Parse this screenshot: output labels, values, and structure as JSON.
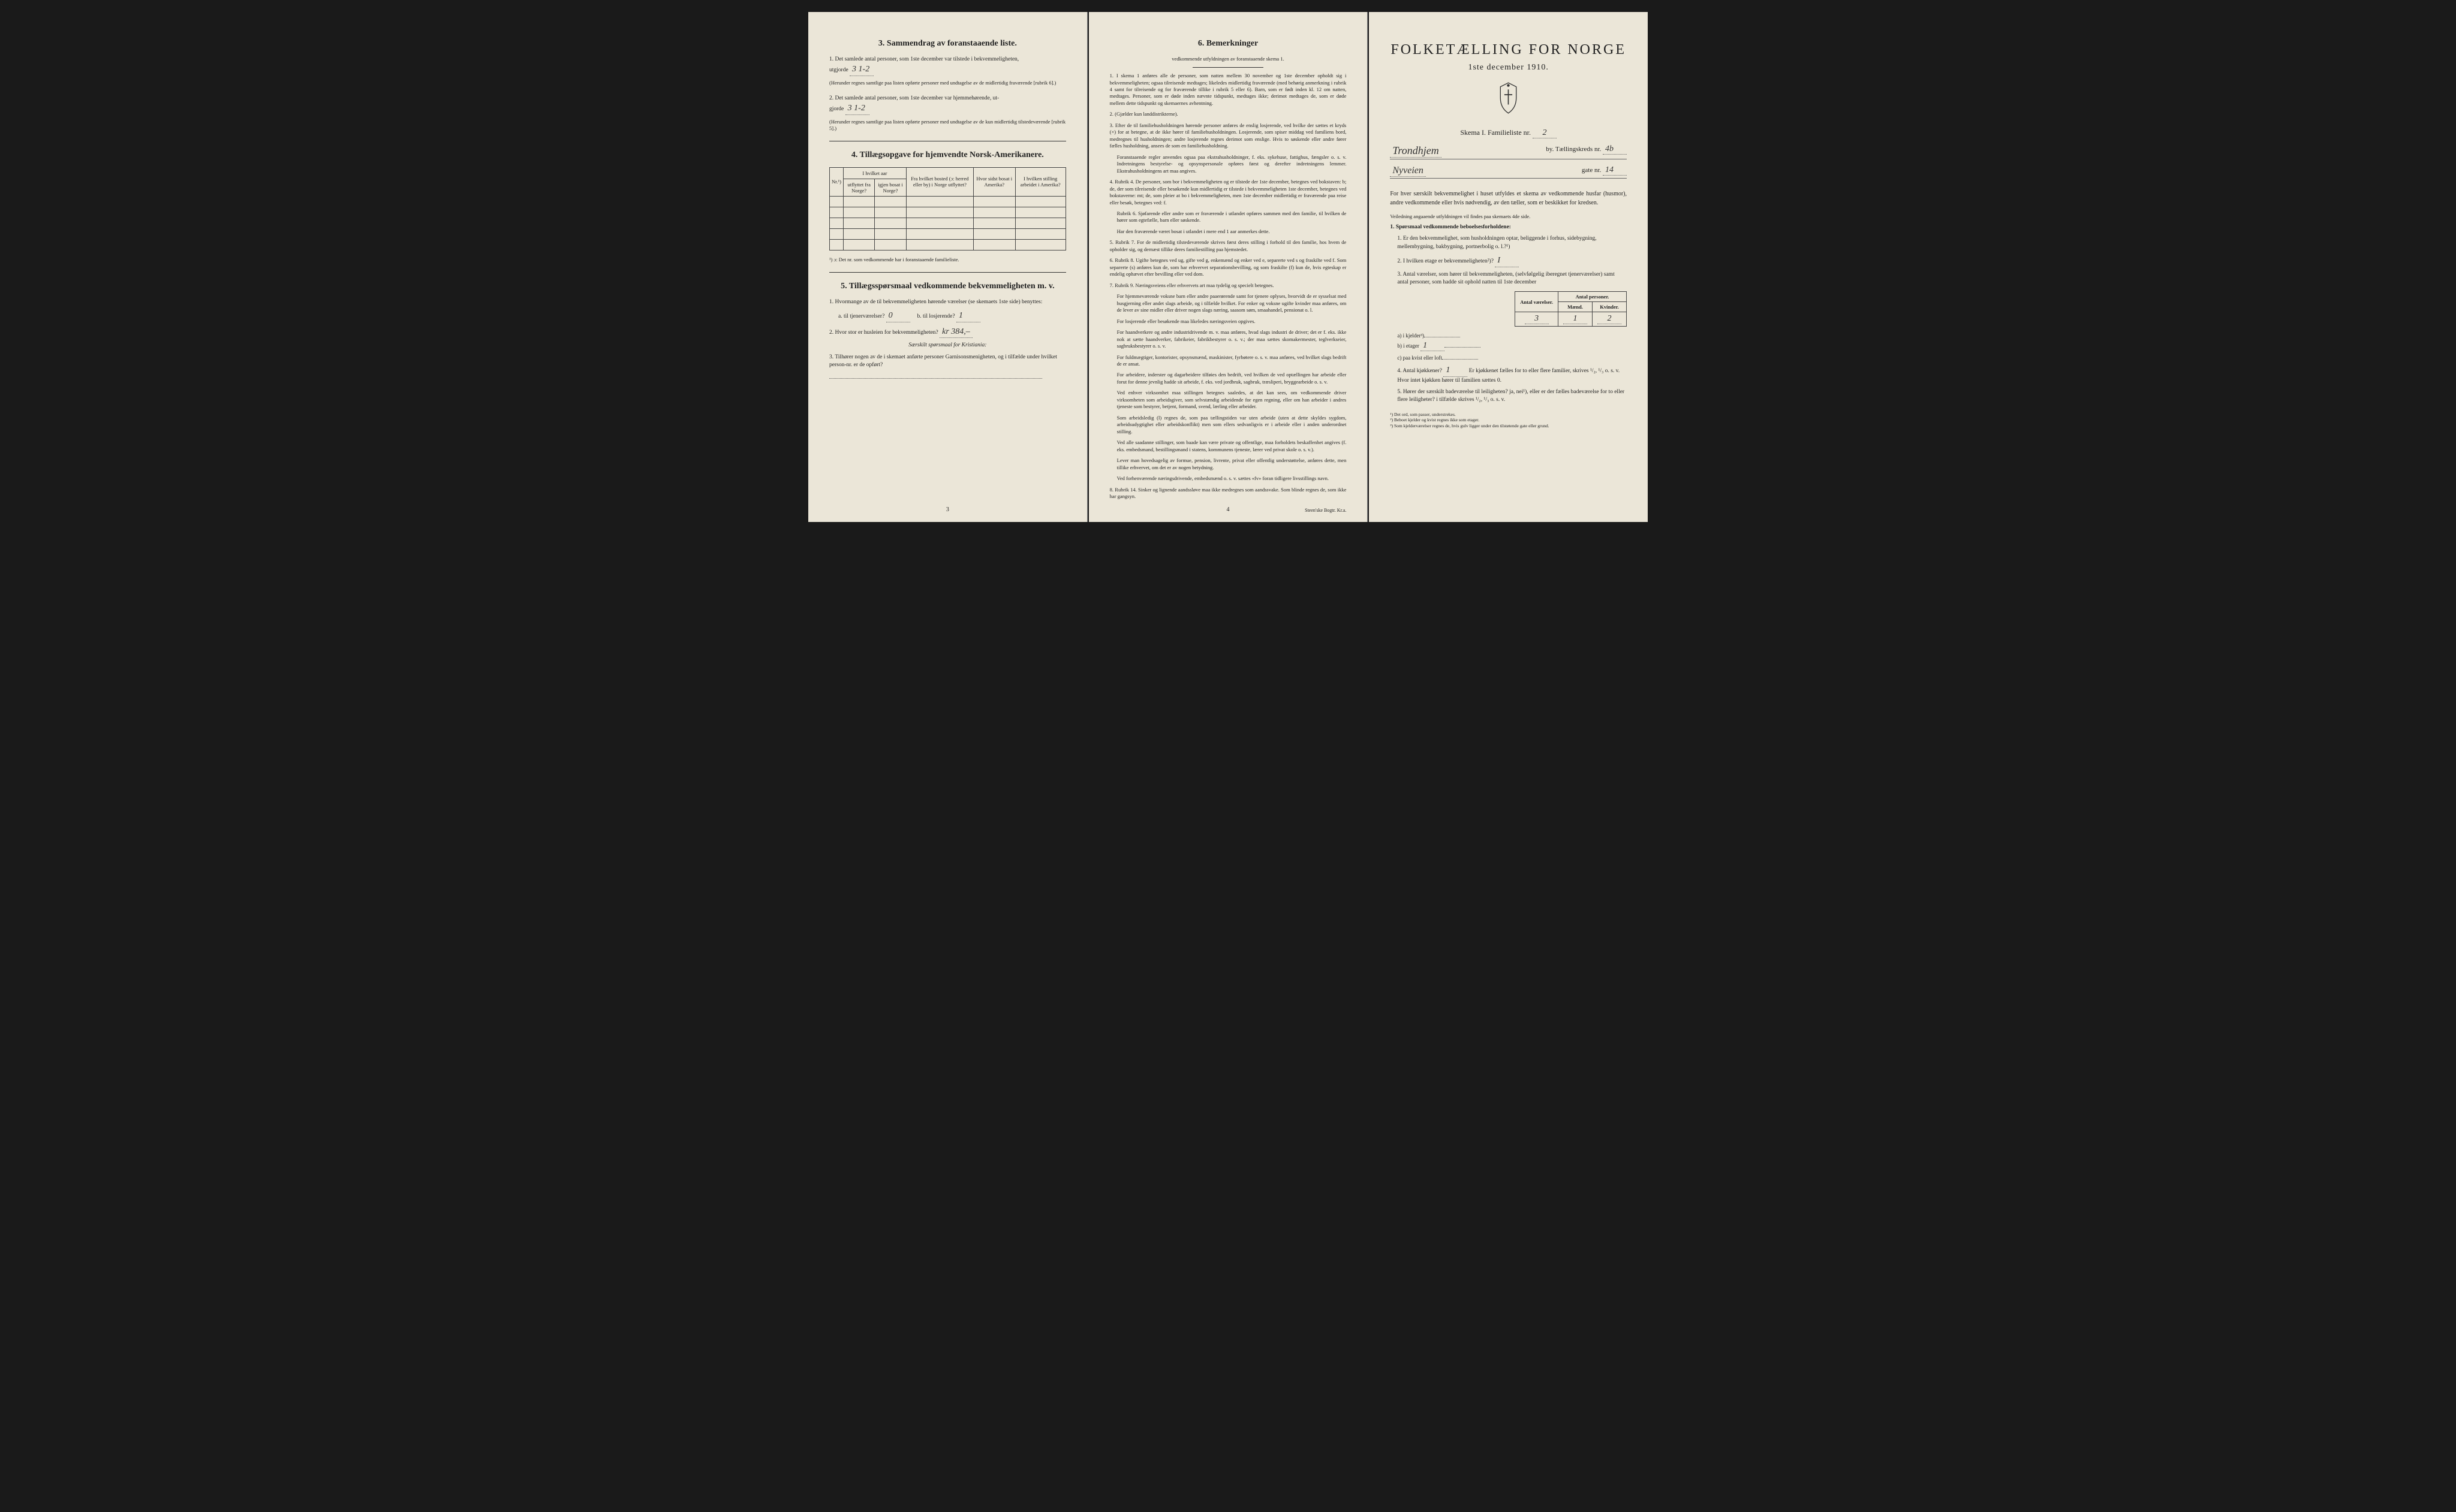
{
  "page_left": {
    "section3": {
      "title": "3.  Sammendrag av foranstaaende liste.",
      "item1_text": "1. Det samlede antal personer, som 1ste december var tilstede i bekvemmeligheten,",
      "item1_prefix": "utgjorde",
      "item1_value": "3    1-2",
      "item1_note": "(Herunder regnes samtlige paa listen opførte personer med undtagelse av de midlertidig fraværende [rubrik 6].)",
      "item2_text": "2. Det samlede antal personer, som 1ste december var hjemmehørende, ut-",
      "item2_prefix": "gjorde",
      "item2_value": "3    1-2",
      "item2_note": "(Herunder regnes samtlige paa listen opførte personer med undtagelse av de kun midlertidig tilstedeværende [rubrik 5].)"
    },
    "section4": {
      "title": "4.  Tillægsopgave for hjemvendte Norsk-Amerikanere.",
      "table": {
        "h1": "Nr.¹)",
        "h2_top": "I hvilket aar",
        "h2a": "utflyttet fra Norge?",
        "h2b": "igjen bosat i Norge?",
        "h3": "Fra hvilket bosted (ɔ: herred eller by) i Norge utflyttet?",
        "h4": "Hvor sidst bosat i Amerika?",
        "h5": "I hvilken stilling arbeidet i Amerika?"
      },
      "footnote": "¹) ɔ: Det nr. som vedkommende har i foranstaaende familieliste."
    },
    "section5": {
      "title": "5.  Tillægsspørsmaal vedkommende bekvemmeligheten m. v.",
      "item1": "1. Hvormange av de til bekvemmeligheten hørende værelser (se skemaets 1ste side) benyttes:",
      "item1a_label": "a. til tjenerværelser?",
      "item1a_value": "0",
      "item1b_label": "b. til losjerende?",
      "item1b_value": "1",
      "item2_label": "2. Hvor stor er husleien for bekvemmeligheten?",
      "item2_value": "kr 384,–",
      "item2_note": "Særskilt spørsmaal for Kristiania:",
      "item3": "3. Tilhører nogen av de i skemaet anførte personer Garnisonsmenigheten, og i tilfælde under hvilket person-nr. er de opført?"
    },
    "page_num": "3"
  },
  "page_center": {
    "title": "6.  Bemerkninger",
    "subtitle": "vedkommende utfyldningen av foranstaaende skema 1.",
    "items": [
      "1. I skema 1 anføres alle de personer, som natten mellem 30 november og 1ste december opholdt sig i bekvemmeligheten; ogsaa tilreisende medtages; likeledes midlertidig fraværende (med behørig anmerkning i rubrik 4 samt for tilreisende og for fraværende tillike i rubrik 5 eller 6). Barn, som er født inden kl. 12 om natten, medtages. Personer, som er døde inden nævnte tidspunkt, medtages ikke; derimot medtages de, som er døde mellem dette tidspunkt og skemaernes avhentning.",
      "2. (Gjælder kun landdistrikterne).",
      "3. Efter de til familiehusholdningen hørende personer anføres de enslig losjerende, ved hvilke der sættes et kryds (×) for at betegne, at de ikke hører til familiehusholdningen. Losjerende, som spiser middag ved familiens bord, medregnes til husholdningen; andre losjerende regnes derimot som enslige. Hvis to søskende eller andre fører fælles husholdning, ansees de som en familiehusholdning.",
      "Foranstaaende regler anvendes ogsaa paa ekstrahusholdninger, f. eks. sykehuse, fattighus, fængsler o. s. v. Indretningens bestyrelse- og opsynspersonale opføres først og derefter indretningens lemmer. Ekstrahusholdningens art maa angives.",
      "4. Rubrik 4. De personer, som bor i bekvemmeligheten og er tilstede der 1ste december, betegnes ved bokstaven: b; de, der som tilreisende eller besøkende kun midlertidig er tilstede i bekvemmeligheten 1ste december, betegnes ved bokstaverne: mt; de, som pleier at bo i bekvemmeligheten, men 1ste december midlertidig er fraværende paa reise eller besøk, betegnes ved: f.",
      "Rubrik 6. Sjøfarende eller andre som er fraværende i utlandet opføres sammen med den familie, til hvilken de hører som egtefælle, barn eller søskende.",
      "Har den fraværende været bosat i utlandet i mere end 1 aar anmerkes dette.",
      "5. Rubrik 7. For de midlertidig tilstedeværende skrives først deres stilling i forhold til den familie, hos hvem de opholder sig, og dernæst tillike deres familiestilling paa hjemstedet.",
      "6. Rubrik 8. Ugifte betegnes ved ug, gifte ved g, enkemænd og enker ved e, separerte ved s og fraskilte ved f. Som separerte (s) anføres kun de, som har erhvervet separationsbevilling, og som fraskilte (f) kun de, hvis egteskap er endelig ophævet efter bevilling eller ved dom.",
      "7. Rubrik 9. Næringsveiens eller erhvervets art maa tydelig og specielt betegnes.",
      "For hjemmeværende voksne barn eller andre paaerørende samt for tjenere oplyses, hvorvidt de er sysselsat med husgjerning eller andet slags arbeide, og i tilfælde hvilket. For enker og voksne ugifte kvinder maa anføres, om de lever av sine midler eller driver nogen slags næring, saasom søm, smaahandel, pensionat o. l.",
      "For losjerende eller besøkende maa likeledes næringsveien opgives.",
      "For haandverkere og andre industridrivende m. v. maa anføres, hvad slags industri de driver; det er f. eks. ikke nok at sætte haandverker, fabrikeier, fabrikbestyrer o. s. v.; der maa sættes skomakermester, teglverkseier, sagbruksbestyrer o. s. v.",
      "For fuldmægtiger, kontorister, opsynsmænd, maskinister, fyrbøtere o. s. v. maa anføres, ved hvilket slags bedrift de er ansat.",
      "For arbeidere, inderster og dagarbeidere tilføies den bedrift, ved hvilken de ved optællingen har arbeide eller forut for denne jevnlig hadde sit arbeide, f. eks. ved jordbruk, sagbruk, træsliperi, bryggearbeide o. s. v.",
      "Ved enhver virksomhet maa stillingen betegnes saaledes, at det kan sees, om vedkommende driver virksomheten som arbeidsgiver, som selvstændig arbeidende for egen regning, eller om han arbeider i andres tjeneste som bestyrer, betjent, formand, svend, lærling eller arbeider.",
      "Som arbeidsledig (l) regnes de, som paa tællingstiden var uten arbeide (uten at dette skyldes sygdom, arbeidsudygtighet eller arbeidskonflikt) men som ellers sedvanligvis er i arbeide eller i anden underordnet stilling.",
      "Ved alle saadanne stillinger, som baade kan være private og offentlige, maa forholdets beskaffenhet angives (f. eks. embedsmand, bestillingsmand i statens, kommunens tjeneste, lærer ved privat skole o. s. v.).",
      "Lever man hovedsagelig av formue, pension, livrente, privat eller offentlig understøttelse, anføres dette, men tillike erhvervet, om det er av nogen betydning.",
      "Ved forhenværende næringsdrivende, embedsmænd o. s. v. sættes «fv» foran tidligere livsstillings navn.",
      "8. Rubrik 14. Sinker og lignende aandssløve maa ikke medregnes som aandssvake. Som blinde regnes de, som ikke har gangsyn."
    ],
    "page_num": "4",
    "printer": "Steen'ske Bogtr.  Kr.a."
  },
  "page_right": {
    "main_title": "FOLKETÆLLING FOR NORGE",
    "subtitle": "1ste december 1910.",
    "schema_label": "Skema I.  Familieliste nr.",
    "schema_value": "2",
    "city_value": "Trondhjem",
    "city_suffix": "by.  Tællingskreds nr.",
    "kreds_value": "4b",
    "gate_value": "Nyveien",
    "gate_suffix": "gate nr.",
    "gate_nr": "14",
    "intro": "For hver særskilt bekvemmelighet i huset utfyldes et skema av vedkommende husfar (husmor), andre vedkommende eller hvis nødvendig, av den tæller, som er beskikket for kredsen.",
    "intro_note": "Veiledning angaaende utfyldningen vil findes paa skemaets 4de side.",
    "q1_title": "1. Spørsmaal vedkommende beboelsesforholdene:",
    "q1_1": "1. Er den bekvemmelighet, som husholdningen optar, beliggende i forhus, sidebygning, mellembygning, bakbygning, portnerbolig o. l.?¹)",
    "q1_2": "2. I hvilken etage er bekvemmeligheten²)?",
    "q1_2_value": "I",
    "q1_3": "3. Antal værelser, som hører til bekvemmeligheten, (selvfølgelig iberegnet tjenerværelser) samt antal personer, som hadde sit ophold natten til 1ste december",
    "count_table": {
      "h_rooms": "Antal værelser.",
      "h_persons": "Antal personer.",
      "h_male": "Mænd.",
      "h_female": "Kvinder.",
      "row_a": "a) i kjelder³)",
      "row_b": "b) i etager",
      "row_b_val": "1",
      "rooms_val": "3",
      "male_val": "1",
      "female_val": "2",
      "row_c": "c) paa kvist eller loft"
    },
    "q1_4": "4. Antal kjøkkener?",
    "q1_4_value": "1",
    "q1_4_text": "Er kjøkkenet fælles for to eller flere familier, skrives ¹/₂, ¹/₃ o. s. v. Hvor intet kjøkken hører til familien sættes 0.",
    "q1_5": "5. Hører der særskilt badeværelse til leiligheten? ja, nei¹), eller er der fælles badeværelse for to eller flere leiligheter? i tilfælde skrives ¹/₂, ¹/₃ o. s. v.",
    "footnotes": [
      "¹) Det ord, som passer, understrekes.",
      "²) Beboet kjelder og kvist regnes ikke som etager.",
      "³) Som kjelderværelser regnes de, hvis gulv ligger under den tilstøtende gate eller grund."
    ]
  },
  "colors": {
    "paper": "#ebe6d8",
    "ink": "#222222",
    "border": "#444444",
    "background": "#1a1a1a"
  }
}
